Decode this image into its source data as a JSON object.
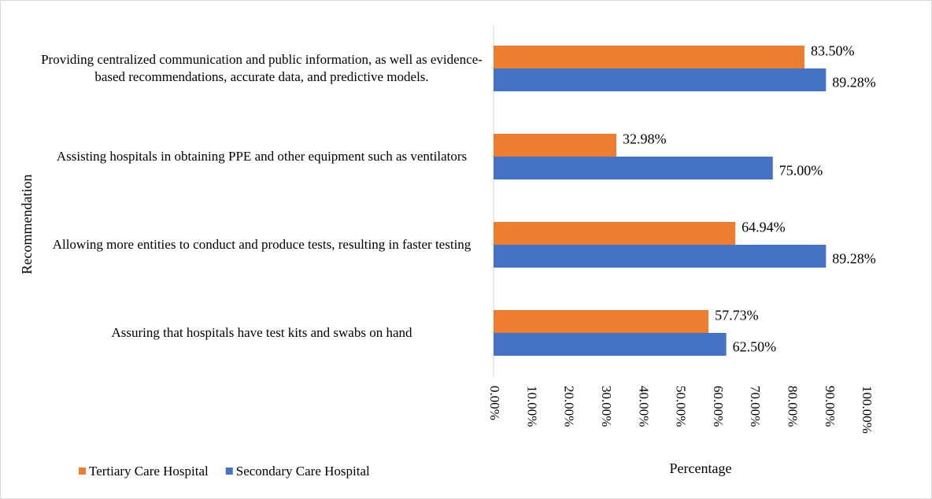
{
  "chart_data": {
    "type": "hbar",
    "x_label": "Percentage",
    "y_label": "Recommendation",
    "categories": [
      "Providing centralized communication and public information, as well as evidence-based recommendations, accurate data, and predictive models.",
      "Assisting hospitals in obtaining PPE and other equipment such as ventilators",
      "Allowing more entities to conduct and produce tests, resulting in faster testing",
      "Assuring that hospitals have test kits and swabs on hand"
    ],
    "series": [
      {
        "name": "Tertiary Care Hospital",
        "color": "#ed7d31",
        "values": [
          83.5,
          32.98,
          64.94,
          57.73
        ],
        "value_labels": [
          "83.50%",
          "32.98%",
          "64.94%",
          "57.73%"
        ]
      },
      {
        "name": "Secondary Care Hospital",
        "color": "#4472c4",
        "values": [
          89.28,
          75,
          89.28,
          62.5
        ],
        "value_labels": [
          "89.28%",
          "75.00%",
          "89.28%",
          "62.50%"
        ]
      }
    ],
    "xlim": [
      0,
      100
    ],
    "xticks": [
      {
        "value": 0,
        "label": "0.00%"
      },
      {
        "value": 10,
        "label": "10.00%"
      },
      {
        "value": 20,
        "label": "20.00%"
      },
      {
        "value": 30,
        "label": "30.00%"
      },
      {
        "value": 40,
        "label": "40.00%"
      },
      {
        "value": 50,
        "label": "50.00%"
      },
      {
        "value": 60,
        "label": "60.00%"
      },
      {
        "value": 70,
        "label": "70.00%"
      },
      {
        "value": 80,
        "label": "80.00%"
      },
      {
        "value": 90,
        "label": "90.00%"
      },
      {
        "value": 100,
        "label": "100.00%"
      }
    ],
    "legend": "bottom-left"
  }
}
